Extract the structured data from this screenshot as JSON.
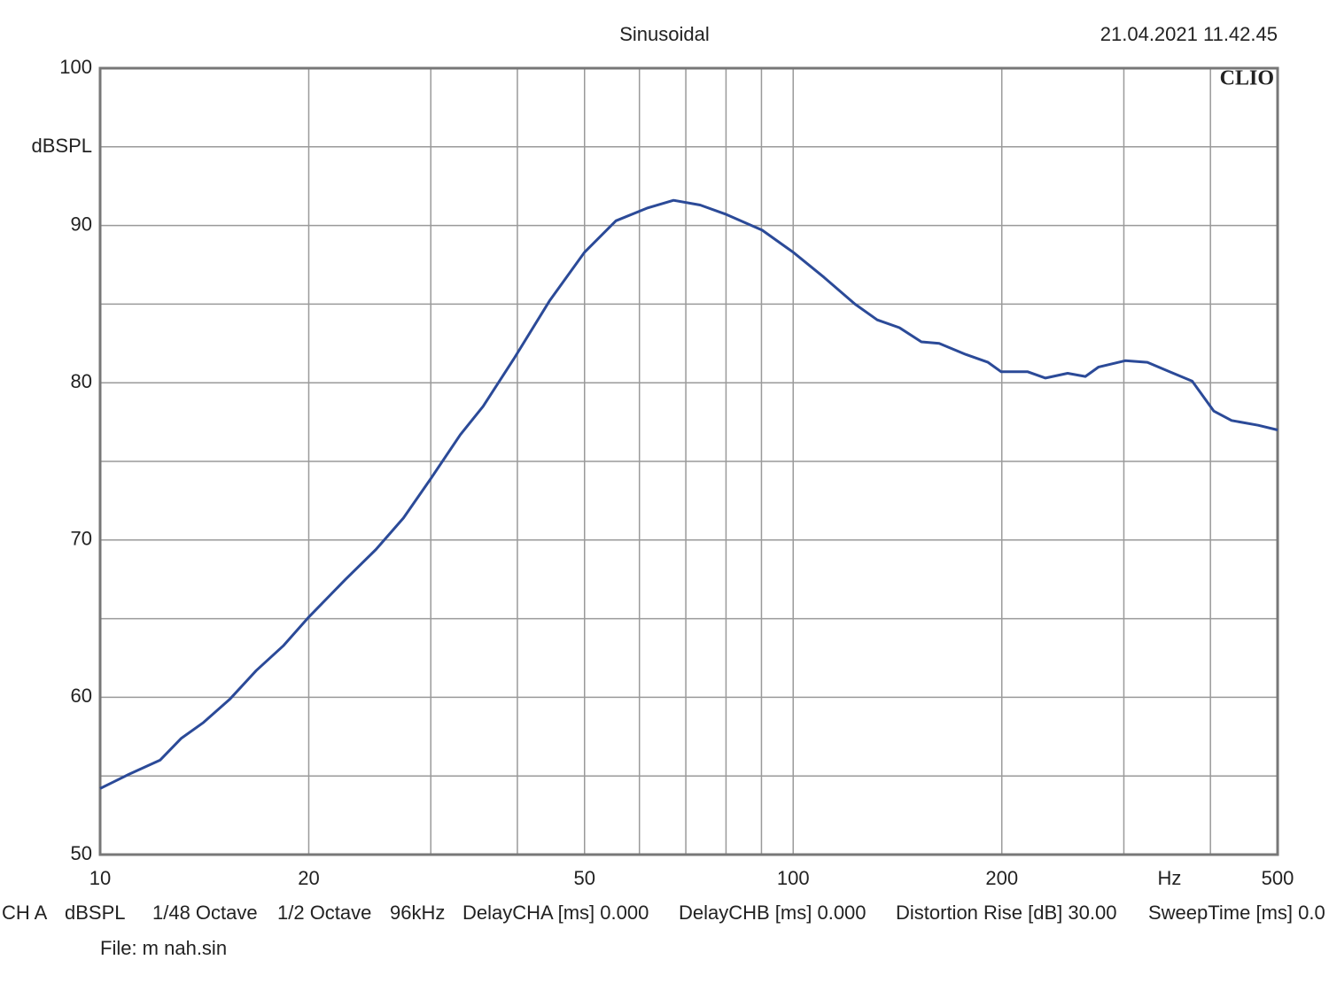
{
  "chart_data": {
    "type": "line",
    "title": "Sinusoidal",
    "timestamp": "21.04.2021 11.42.45",
    "watermark": "CLIO",
    "y_label": "dBSPL",
    "x_label": "Hz",
    "log_x": true,
    "grid": true,
    "xlim": [
      10,
      500
    ],
    "xticks": [
      10,
      20,
      50,
      100,
      200,
      500
    ],
    "xminor": [
      30,
      40,
      60,
      70,
      80,
      90,
      300,
      400
    ],
    "ylim": [
      50,
      100
    ],
    "yticks": [
      50,
      60,
      70,
      80,
      90,
      100
    ],
    "yminor": [
      55,
      65,
      75,
      85,
      95
    ],
    "series": [
      {
        "color": "#2b4a98",
        "x": [
          10,
          11,
          12.2,
          13.1,
          14.1,
          15.4,
          16.8,
          18.4,
          20,
          22.6,
          25,
          27.4,
          30,
          33.1,
          35.7,
          39.5,
          44.5,
          50,
          55.5,
          61.5,
          67.2,
          73.4,
          80.1,
          90.2,
          100,
          110.8,
          122.8,
          132.2,
          142.3,
          153.1,
          162.4,
          177.4,
          191,
          199.6,
          218,
          231.2,
          248.9,
          264,
          275.9,
          301.4,
          324.4,
          349.2,
          376.5,
          404.5,
          429,
          468.7,
          500
        ],
        "values": [
          54.2,
          55.1,
          56.0,
          57.4,
          58.4,
          59.9,
          61.7,
          63.3,
          65.1,
          67.5,
          69.4,
          71.4,
          73.9,
          76.7,
          78.5,
          81.5,
          85.2,
          88.3,
          90.3,
          91.1,
          91.6,
          91.3,
          90.7,
          89.7,
          88.3,
          86.7,
          85.0,
          84.0,
          83.5,
          82.6,
          82.5,
          81.8,
          81.3,
          80.7,
          80.7,
          80.3,
          80.6,
          80.4,
          81.0,
          81.4,
          81.3,
          80.7,
          80.1,
          78.2,
          77.6,
          77.3,
          77.0
        ]
      }
    ]
  },
  "footer": {
    "settings": [
      "CH A",
      "dBSPL",
      "1/48 Octave",
      "1/2 Octave",
      "96kHz",
      "DelayCHA [ms] 0.000",
      "DelayCHB [ms] 0.000",
      "Distortion Rise [dB] 30.00",
      "SweepTime [ms] 0.0"
    ],
    "file": "File: m nah.sin"
  }
}
